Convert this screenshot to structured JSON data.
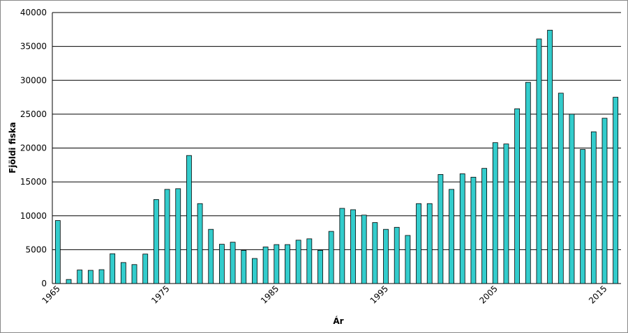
{
  "chart_data": {
    "type": "bar",
    "x_label": "Ár",
    "y_label": "Fjöldi fiska",
    "categories": [
      "1965",
      null,
      null,
      null,
      null,
      null,
      null,
      null,
      null,
      null,
      "1975",
      null,
      null,
      null,
      null,
      null,
      null,
      null,
      null,
      null,
      "1985",
      null,
      null,
      null,
      null,
      null,
      null,
      null,
      null,
      null,
      "1995",
      null,
      null,
      null,
      null,
      null,
      null,
      null,
      null,
      null,
      "2005",
      null,
      null,
      null,
      null,
      null,
      null,
      null,
      null,
      null,
      "2015",
      null
    ],
    "values": [
      9300,
      600,
      2000,
      1950,
      2050,
      4400,
      3100,
      2800,
      4350,
      12400,
      13900,
      14000,
      18900,
      11800,
      8000,
      5800,
      6100,
      4900,
      3700,
      5400,
      5750,
      5750,
      6400,
      6600,
      4900,
      7700,
      11100,
      10900,
      10100,
      9000,
      8000,
      8300,
      7100,
      11800,
      11800,
      16100,
      13900,
      16200,
      15700,
      17000,
      20800,
      20600,
      25800,
      29700,
      36100,
      37400,
      28100,
      25000,
      19800,
      22400,
      24400,
      27500
    ],
    "color": "#33cccc",
    "ylim": [
      0,
      40000
    ],
    "yticks": [
      0,
      5000,
      10000,
      15000,
      20000,
      25000,
      30000,
      35000,
      40000
    ],
    "grid": true
  }
}
